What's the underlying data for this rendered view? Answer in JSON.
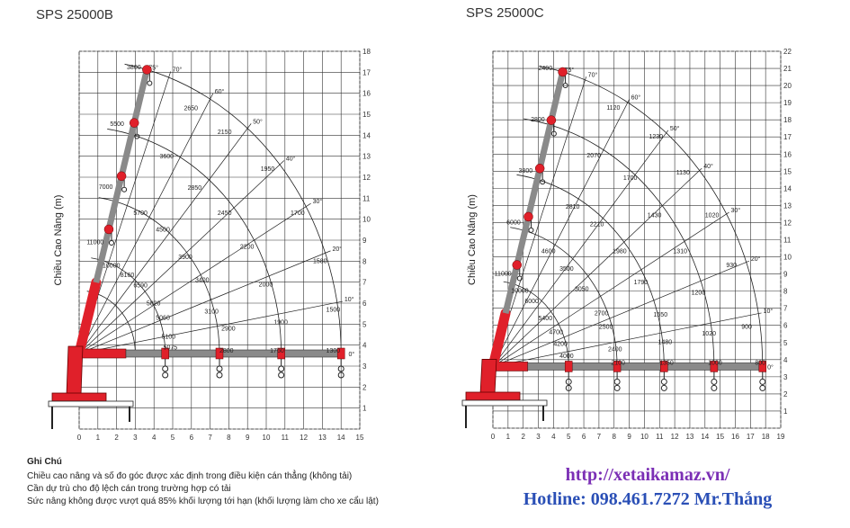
{
  "charts": [
    {
      "title": "SPS 25000B",
      "ylabel": "Chiều Cao Nâng (m)",
      "x_ticks": [
        "0",
        "1",
        "2",
        "3",
        "4",
        "5",
        "6",
        "7",
        "8",
        "9",
        "10",
        "11",
        "12",
        "13",
        "14",
        "15"
      ],
      "y_ticks": [
        "1",
        "2",
        "3",
        "4",
        "5",
        "6",
        "7",
        "8",
        "9",
        "10",
        "11",
        "12",
        "13",
        "14",
        "15",
        "16",
        "17",
        "18"
      ],
      "xlim": [
        0,
        15
      ],
      "ylim": [
        0,
        18
      ],
      "pivot": [
        0,
        3.6
      ],
      "arcs": [
        {
          "r": 3.0,
          "end": 82
        },
        {
          "r": 4.6,
          "end": 82
        },
        {
          "r": 7.5,
          "end": 82
        },
        {
          "r": 10.8,
          "end": 82
        },
        {
          "r": 14.0,
          "end": 80
        }
      ],
      "angle_lines": [
        {
          "deg": 0,
          "len": 14.3,
          "label": "0°"
        },
        {
          "deg": 10,
          "len": 14.3,
          "label": "10°"
        },
        {
          "deg": 20,
          "len": 14.3,
          "label": "20°"
        },
        {
          "deg": 30,
          "len": 14.3,
          "label": "30°"
        },
        {
          "deg": 40,
          "len": 14.3,
          "label": "40°"
        },
        {
          "deg": 50,
          "len": 14.3,
          "label": "50°"
        },
        {
          "deg": 60,
          "len": 14.3,
          "label": "60°"
        },
        {
          "deg": 70,
          "len": 14.3,
          "label": "70°"
        },
        {
          "deg": 75,
          "len": 14.0,
          "label": "75°"
        }
      ],
      "boom_sections": [
        2.5,
        4.6,
        7.5,
        10.8,
        14.0
      ],
      "loads": [
        {
          "text": "3800",
          "x": 2.55,
          "y": 17.15
        },
        {
          "text": "5500",
          "x": 1.65,
          "y": 14.45
        },
        {
          "text": "7000",
          "x": 1.05,
          "y": 11.45
        },
        {
          "text": "11000",
          "x": 0.4,
          "y": 8.8
        },
        {
          "text": "10000",
          "x": 1.25,
          "y": 7.7
        },
        {
          "text": "2650",
          "x": 5.6,
          "y": 15.2
        },
        {
          "text": "3600",
          "x": 4.3,
          "y": 12.9
        },
        {
          "text": "5700",
          "x": 2.9,
          "y": 10.2
        },
        {
          "text": "8160",
          "x": 2.2,
          "y": 7.25
        },
        {
          "text": "2150",
          "x": 7.4,
          "y": 14.05
        },
        {
          "text": "2850",
          "x": 5.8,
          "y": 11.4
        },
        {
          "text": "4500",
          "x": 4.1,
          "y": 9.4
        },
        {
          "text": "6590",
          "x": 2.9,
          "y": 6.75
        },
        {
          "text": "1950",
          "x": 9.7,
          "y": 12.3
        },
        {
          "text": "2450",
          "x": 7.4,
          "y": 10.2
        },
        {
          "text": "3900",
          "x": 5.3,
          "y": 8.1
        },
        {
          "text": "5820",
          "x": 3.6,
          "y": 5.9
        },
        {
          "text": "1700",
          "x": 11.3,
          "y": 10.2
        },
        {
          "text": "2200",
          "x": 8.6,
          "y": 8.6
        },
        {
          "text": "3400",
          "x": 6.2,
          "y": 7.0
        },
        {
          "text": "5060",
          "x": 4.1,
          "y": 5.2
        },
        {
          "text": "1580",
          "x": 12.5,
          "y": 7.9
        },
        {
          "text": "2000",
          "x": 9.6,
          "y": 6.8
        },
        {
          "text": "3100",
          "x": 6.7,
          "y": 5.5
        },
        {
          "text": "5100",
          "x": 4.4,
          "y": 4.3
        },
        {
          "text": "1500",
          "x": 13.2,
          "y": 5.6
        },
        {
          "text": "1900",
          "x": 10.4,
          "y": 5.0
        },
        {
          "text": "2900",
          "x": 7.6,
          "y": 4.7
        },
        {
          "text": "5075",
          "x": 4.5,
          "y": 3.8
        },
        {
          "text": "2800",
          "x": 7.5,
          "y": 3.65
        },
        {
          "text": "1760",
          "x": 10.2,
          "y": 3.65
        },
        {
          "text": "1300",
          "x": 13.2,
          "y": 3.65
        }
      ]
    },
    {
      "title": "SPS 25000C",
      "ylabel": "Chiều Cao Nâng (m)",
      "x_ticks": [
        "0",
        "1",
        "2",
        "3",
        "4",
        "5",
        "6",
        "7",
        "8",
        "9",
        "10",
        "11",
        "12",
        "13",
        "14",
        "15",
        "16",
        "17",
        "18",
        "19"
      ],
      "y_ticks": [
        "1",
        "2",
        "3",
        "4",
        "5",
        "6",
        "7",
        "8",
        "9",
        "10",
        "11",
        "12",
        "13",
        "14",
        "15",
        "16",
        "17",
        "18",
        "19",
        "20",
        "21",
        "22"
      ],
      "xlim": [
        0,
        19
      ],
      "ylim": [
        0,
        22
      ],
      "pivot": [
        0,
        3.6
      ],
      "arcs": [
        {
          "r": 5.0,
          "end": 82
        },
        {
          "r": 8.2,
          "end": 82
        },
        {
          "r": 11.3,
          "end": 82
        },
        {
          "r": 14.6,
          "end": 82
        },
        {
          "r": 17.8,
          "end": 80
        }
      ],
      "angle_lines": [
        {
          "deg": 0,
          "len": 18.0,
          "label": "0°"
        },
        {
          "deg": 10,
          "len": 18.0,
          "label": "10°"
        },
        {
          "deg": 20,
          "len": 18.0,
          "label": "20°"
        },
        {
          "deg": 30,
          "len": 18.0,
          "label": "30°"
        },
        {
          "deg": 40,
          "len": 18.0,
          "label": "40°"
        },
        {
          "deg": 50,
          "len": 18.0,
          "label": "50°"
        },
        {
          "deg": 60,
          "len": 18.0,
          "label": "60°"
        },
        {
          "deg": 70,
          "len": 18.0,
          "label": "70°"
        },
        {
          "deg": 75,
          "len": 17.8,
          "label": "75°"
        }
      ],
      "boom_sections": [
        2.3,
        5.0,
        8.2,
        11.3,
        14.6,
        17.8
      ],
      "loads": [
        {
          "text": "2400",
          "x": 3.0,
          "y": 20.9
        },
        {
          "text": "2800",
          "x": 2.5,
          "y": 17.9
        },
        {
          "text": "3800",
          "x": 1.7,
          "y": 14.9
        },
        {
          "text": "6000",
          "x": 0.9,
          "y": 11.9
        },
        {
          "text": "11000",
          "x": 0.1,
          "y": 8.9
        },
        {
          "text": "10000",
          "x": 1.2,
          "y": 7.9
        },
        {
          "text": "1120",
          "x": 7.5,
          "y": 18.6
        },
        {
          "text": "2070",
          "x": 6.2,
          "y": 15.8
        },
        {
          "text": "2810",
          "x": 4.8,
          "y": 12.8
        },
        {
          "text": "4600",
          "x": 3.2,
          "y": 10.2
        },
        {
          "text": "6000",
          "x": 2.1,
          "y": 7.3
        },
        {
          "text": "1230",
          "x": 10.3,
          "y": 16.9
        },
        {
          "text": "1700",
          "x": 8.6,
          "y": 14.5
        },
        {
          "text": "2210",
          "x": 6.4,
          "y": 11.8
        },
        {
          "text": "3500",
          "x": 4.4,
          "y": 9.2
        },
        {
          "text": "5400",
          "x": 3.0,
          "y": 6.3
        },
        {
          "text": "1130",
          "x": 12.1,
          "y": 14.8
        },
        {
          "text": "1430",
          "x": 10.2,
          "y": 12.3
        },
        {
          "text": "1980",
          "x": 7.9,
          "y": 10.2
        },
        {
          "text": "3050",
          "x": 5.4,
          "y": 8.0
        },
        {
          "text": "4700",
          "x": 3.7,
          "y": 5.5
        },
        {
          "text": "1020",
          "x": 14.0,
          "y": 12.3
        },
        {
          "text": "1310",
          "x": 11.9,
          "y": 10.2
        },
        {
          "text": "1790",
          "x": 9.3,
          "y": 8.4
        },
        {
          "text": "2700",
          "x": 6.7,
          "y": 6.6
        },
        {
          "text": "4200",
          "x": 4.0,
          "y": 4.8
        },
        {
          "text": "930",
          "x": 15.4,
          "y": 9.4
        },
        {
          "text": "1200",
          "x": 13.1,
          "y": 7.8
        },
        {
          "text": "1550",
          "x": 10.6,
          "y": 6.5
        },
        {
          "text": "2500",
          "x": 7.0,
          "y": 5.8
        },
        {
          "text": "4000",
          "x": 4.4,
          "y": 4.1
        },
        {
          "text": "900",
          "x": 16.4,
          "y": 5.8
        },
        {
          "text": "1020",
          "x": 13.8,
          "y": 5.4
        },
        {
          "text": "1480",
          "x": 10.9,
          "y": 4.9
        },
        {
          "text": "2400",
          "x": 7.6,
          "y": 4.5
        },
        {
          "text": "2100",
          "x": 7.8,
          "y": 3.7
        },
        {
          "text": "1350",
          "x": 11.0,
          "y": 3.7
        },
        {
          "text": "1000",
          "x": 14.2,
          "y": 3.7
        },
        {
          "text": "800",
          "x": 17.3,
          "y": 3.7
        }
      ]
    }
  ],
  "notes": {
    "heading": "Ghi Chú",
    "lines": [
      "Chiều cao nâng và số đo góc được xác định trong điều kiện cán thẳng (không tải)",
      "Cần dự trù cho độ lệch cán trong trường hợp có tải",
      "Sức nâng không được vượt quá 85% khối lượng tới hạn (khối lượng làm cho xe cẩu lật)"
    ]
  },
  "contact": {
    "url": "http://xetaikamaz.vn/",
    "hotline": "Hotline: 098.461.7272 Mr.Thắng"
  },
  "colors": {
    "boom_red": "#e0202a",
    "boom_gray": "#8a8a8a",
    "grid": "#333333",
    "url": "#7b2fb5",
    "hotline": "#2a4fb6"
  }
}
